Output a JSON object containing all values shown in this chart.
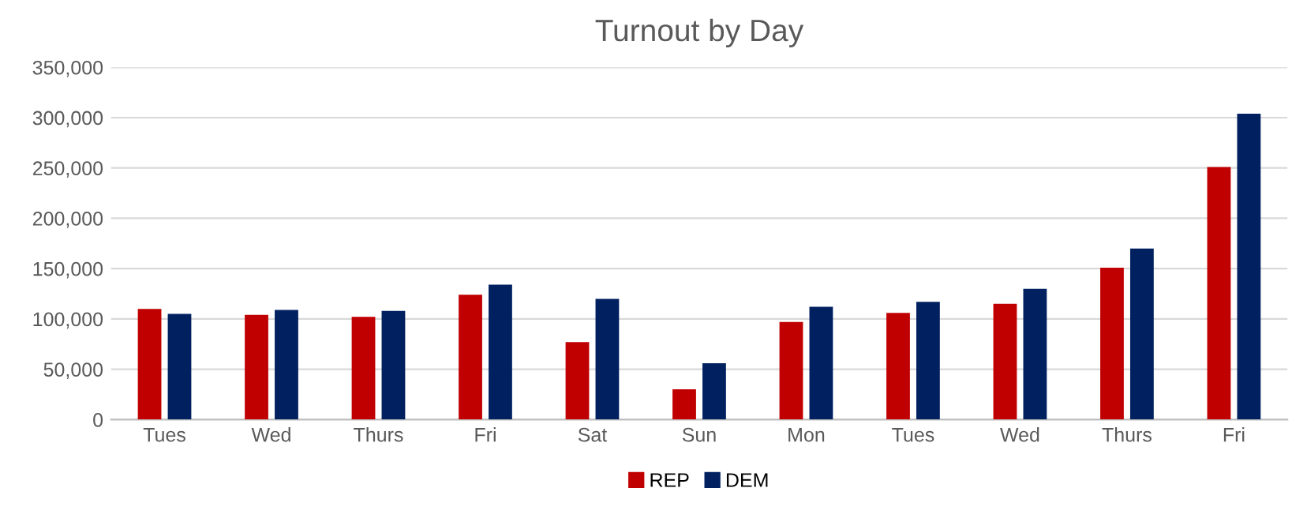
{
  "chart_data": {
    "type": "bar",
    "title": "Turnout by Day",
    "categories": [
      "Tues",
      "Wed",
      "Thurs",
      "Fri",
      "Sat",
      "Sun",
      "Mon",
      "Tues",
      "Wed",
      "Thurs",
      "Fri"
    ],
    "series": [
      {
        "name": "REP",
        "color": "#c00000",
        "values": [
          110000,
          104000,
          102000,
          124000,
          77000,
          30000,
          97000,
          106000,
          115000,
          151000,
          251000
        ]
      },
      {
        "name": "DEM",
        "color": "#002060",
        "values": [
          105000,
          109000,
          108000,
          134000,
          120000,
          56000,
          112000,
          117000,
          130000,
          170000,
          304000
        ]
      }
    ],
    "ylim": [
      0,
      350000
    ],
    "yticks": [
      {
        "value": 0,
        "label": "0"
      },
      {
        "value": 50000,
        "label": "50,000"
      },
      {
        "value": 100000,
        "label": "100,000"
      },
      {
        "value": 150000,
        "label": "150,000"
      },
      {
        "value": 200000,
        "label": "200,000"
      },
      {
        "value": 250000,
        "label": "250,000"
      },
      {
        "value": 300000,
        "label": "300,000"
      },
      {
        "value": 350000,
        "label": "350,000"
      }
    ],
    "grid": "y",
    "legend": "bottom"
  }
}
